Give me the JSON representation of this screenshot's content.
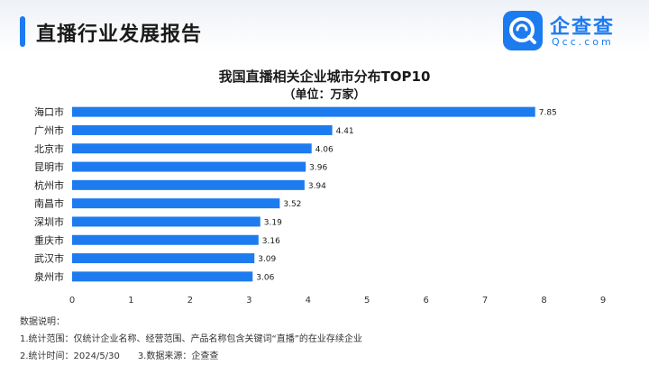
{
  "header": {
    "title": "直播行业发展报告"
  },
  "logo": {
    "cn": "企查查",
    "en": "Qcc.com"
  },
  "notes": {
    "heading": "数据说明：",
    "line1": "1.统计范围：仅统计企业名称、经营范围、产品名称包含关键词“直播”的在业存续企业",
    "line2": "2.统计时间：2024/5/30　　3.数据来源：企查查"
  },
  "colors": {
    "bar": "#1d7bf0",
    "accent": "#1d7bf0"
  },
  "chart_data": {
    "type": "bar",
    "orientation": "horizontal",
    "title": "我国直播相关企业城市分布TOP10",
    "subtitle": "（单位：万家）",
    "categories": [
      "海口市",
      "广州市",
      "北京市",
      "昆明市",
      "杭州市",
      "南昌市",
      "深圳市",
      "重庆市",
      "武汉市",
      "泉州市"
    ],
    "values": [
      7.85,
      4.41,
      4.06,
      3.96,
      3.94,
      3.52,
      3.19,
      3.16,
      3.09,
      3.06
    ],
    "value_labels": [
      "7.85",
      "4.41",
      "4.06",
      "3.96",
      "3.94",
      "3.52",
      "3.19",
      "3.16",
      "3.09",
      "3.06"
    ],
    "xlim": [
      0,
      9
    ],
    "xticks": [
      "0",
      "1",
      "2",
      "3",
      "4",
      "5",
      "6",
      "7",
      "8",
      "9"
    ],
    "grid": false,
    "legend": "none"
  }
}
